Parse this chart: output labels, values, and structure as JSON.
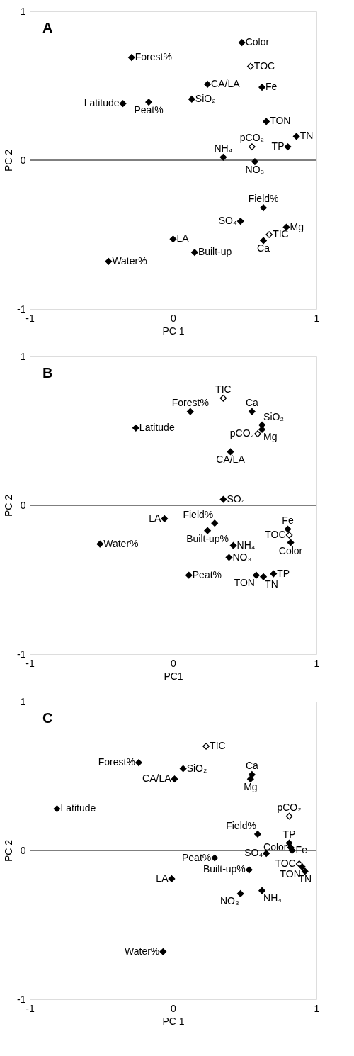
{
  "chart_data": [
    {
      "type": "scatter",
      "title": "A",
      "xlabel": "PC 1",
      "ylabel": "PC 2",
      "xlim": [
        -1,
        1
      ],
      "ylim": [
        -1,
        1
      ],
      "xticks": [
        -1,
        0,
        1
      ],
      "yticks": [
        -1,
        0,
        1
      ],
      "marker": "diamond",
      "ref_lines": [
        {
          "axis": "x",
          "value": 0,
          "color": "#000000"
        },
        {
          "axis": "y",
          "value": 0,
          "color": "#000000"
        }
      ],
      "series": [
        {
          "type": "scatter",
          "color": "#000000",
          "x": [
            -0.29,
            -0.35,
            -0.17,
            0.24,
            0.13,
            0.48,
            0.62,
            0.65,
            0.86,
            0.8,
            0.35,
            0.57,
            0.63,
            0.47,
            0.79,
            0.63,
            0.0,
            0.15,
            -0.45
          ],
          "values": [
            0.69,
            0.38,
            0.39,
            0.51,
            0.41,
            0.79,
            0.49,
            0.26,
            0.16,
            0.09,
            0.02,
            -0.01,
            -0.32,
            -0.41,
            -0.45,
            -0.54,
            -0.53,
            -0.62,
            -0.68
          ]
        },
        {
          "type": "scatter",
          "color": "#ffffff",
          "x": [
            0.54,
            0.55,
            0.67
          ],
          "values": [
            0.63,
            0.09,
            -0.5
          ]
        }
      ],
      "annotations": [
        {
          "text": "Forest%",
          "x": -0.29,
          "y": 0.69
        },
        {
          "text": "Latitude",
          "x": -0.35,
          "y": 0.38
        },
        {
          "text": "Peat%",
          "x": -0.17,
          "y": 0.39
        },
        {
          "text": "CA/LA",
          "x": 0.24,
          "y": 0.51
        },
        {
          "text": "SiO₂",
          "x": 0.13,
          "y": 0.41
        },
        {
          "text": "Color",
          "x": 0.48,
          "y": 0.79
        },
        {
          "text": "Fe",
          "x": 0.62,
          "y": 0.49
        },
        {
          "text": "TON",
          "x": 0.65,
          "y": 0.26
        },
        {
          "text": "TN",
          "x": 0.86,
          "y": 0.16
        },
        {
          "text": "TP",
          "x": 0.8,
          "y": 0.09
        },
        {
          "text": "NH₄",
          "x": 0.35,
          "y": 0.02
        },
        {
          "text": "NO₃",
          "x": 0.57,
          "y": -0.01
        },
        {
          "text": "Field%",
          "x": 0.63,
          "y": -0.32
        },
        {
          "text": "SO₄",
          "x": 0.47,
          "y": -0.41
        },
        {
          "text": "Mg",
          "x": 0.79,
          "y": -0.45
        },
        {
          "text": "Ca",
          "x": 0.63,
          "y": -0.54
        },
        {
          "text": "LA",
          "x": 0.0,
          "y": -0.53
        },
        {
          "text": "Built-up",
          "x": 0.15,
          "y": -0.62
        },
        {
          "text": "Water%",
          "x": -0.45,
          "y": -0.68
        },
        {
          "text": "TOC",
          "x": 0.54,
          "y": 0.63
        },
        {
          "text": "pCO₂",
          "x": 0.55,
          "y": 0.09
        },
        {
          "text": "TIC",
          "x": 0.67,
          "y": -0.5
        }
      ]
    },
    {
      "type": "scatter",
      "title": "B",
      "xlabel": "PC1",
      "ylabel": "PC 2",
      "xlim": [
        -1,
        1
      ],
      "ylim": [
        -1,
        1
      ],
      "xticks": [
        -1,
        0,
        1
      ],
      "yticks": [
        -1,
        0,
        1
      ],
      "marker": "diamond",
      "ref_lines": [
        {
          "axis": "x",
          "value": 0,
          "color": "#000000"
        },
        {
          "axis": "y",
          "value": 0,
          "color": "#000000"
        }
      ],
      "series": [
        {
          "type": "scatter",
          "color": "#000000",
          "x": [
            0.12,
            0.55,
            -0.26,
            0.62,
            0.62,
            0.4,
            0.35,
            -0.06,
            0.29,
            0.24,
            -0.51,
            0.42,
            0.39,
            0.11,
            0.58,
            0.63,
            0.7,
            0.8,
            0.82
          ],
          "values": [
            0.63,
            0.63,
            0.52,
            0.54,
            0.51,
            0.36,
            0.04,
            -0.09,
            -0.12,
            -0.17,
            -0.26,
            -0.27,
            -0.35,
            -0.47,
            -0.47,
            -0.48,
            -0.46,
            -0.16,
            -0.25
          ]
        },
        {
          "type": "scatter",
          "color": "#ffffff",
          "x": [
            0.35,
            0.59,
            0.81
          ],
          "values": [
            0.72,
            0.48,
            -0.2
          ]
        }
      ],
      "annotations": [
        {
          "text": "Forest%",
          "x": 0.12,
          "y": 0.63
        },
        {
          "text": "Ca",
          "x": 0.55,
          "y": 0.63
        },
        {
          "text": "Latitude",
          "x": -0.26,
          "y": 0.52
        },
        {
          "text": "SiO₂",
          "x": 0.62,
          "y": 0.54
        },
        {
          "text": "Mg",
          "x": 0.62,
          "y": 0.51
        },
        {
          "text": "CA/LA",
          "x": 0.4,
          "y": 0.36
        },
        {
          "text": "SO₄",
          "x": 0.35,
          "y": 0.04
        },
        {
          "text": "LA",
          "x": -0.06,
          "y": -0.09
        },
        {
          "text": "Field%",
          "x": 0.29,
          "y": -0.12
        },
        {
          "text": "Built-up%",
          "x": 0.24,
          "y": -0.17
        },
        {
          "text": "Water%",
          "x": -0.51,
          "y": -0.26
        },
        {
          "text": "NH₄",
          "x": 0.42,
          "y": -0.27
        },
        {
          "text": "NO₃",
          "x": 0.39,
          "y": -0.35
        },
        {
          "text": "Peat%",
          "x": 0.11,
          "y": -0.47
        },
        {
          "text": "TON",
          "x": 0.58,
          "y": -0.47
        },
        {
          "text": "TN",
          "x": 0.63,
          "y": -0.48
        },
        {
          "text": "TP",
          "x": 0.7,
          "y": -0.46
        },
        {
          "text": "Fe",
          "x": 0.8,
          "y": -0.16
        },
        {
          "text": "Color",
          "x": 0.82,
          "y": -0.25
        },
        {
          "text": "TIC",
          "x": 0.35,
          "y": 0.72
        },
        {
          "text": "pCO₂",
          "x": 0.59,
          "y": 0.48
        },
        {
          "text": "TOC",
          "x": 0.81,
          "y": -0.2
        }
      ]
    },
    {
      "type": "scatter",
      "title": "C",
      "xlabel": "PC 1",
      "ylabel": "PC 2",
      "xlim": [
        -1,
        1
      ],
      "ylim": [
        -1,
        1
      ],
      "xticks": [
        -1,
        0,
        1
      ],
      "yticks": [
        -1,
        0,
        1
      ],
      "marker": "diamond",
      "ref_lines": [
        {
          "axis": "x",
          "value": 0,
          "color": "#808080"
        },
        {
          "axis": "y",
          "value": 0,
          "color": "#000000"
        }
      ],
      "series": [
        {
          "type": "scatter",
          "color": "#000000",
          "x": [
            -0.24,
            0.07,
            0.01,
            0.55,
            0.54,
            -0.81,
            0.59,
            0.81,
            0.82,
            0.83,
            0.65,
            0.29,
            0.9,
            0.92,
            0.53,
            -0.01,
            0.62,
            0.47,
            -0.07
          ],
          "values": [
            0.59,
            0.55,
            0.48,
            0.51,
            0.48,
            0.28,
            0.11,
            0.05,
            0.02,
            0.0,
            -0.02,
            -0.05,
            -0.11,
            -0.14,
            -0.13,
            -0.19,
            -0.27,
            -0.29,
            -0.68
          ]
        },
        {
          "type": "scatter",
          "color": "#ffffff",
          "x": [
            0.23,
            0.81,
            0.88
          ],
          "values": [
            0.7,
            0.23,
            -0.09
          ]
        }
      ],
      "annotations": [
        {
          "text": "Forest%",
          "x": -0.24,
          "y": 0.59
        },
        {
          "text": "SiO₂",
          "x": 0.07,
          "y": 0.55
        },
        {
          "text": "CA/LA",
          "x": 0.01,
          "y": 0.48
        },
        {
          "text": "Ca",
          "x": 0.55,
          "y": 0.51
        },
        {
          "text": "Mg",
          "x": 0.54,
          "y": 0.48
        },
        {
          "text": "Latitude",
          "x": -0.81,
          "y": 0.28
        },
        {
          "text": "Field%",
          "x": 0.59,
          "y": 0.11
        },
        {
          "text": "TP",
          "x": 0.81,
          "y": 0.05
        },
        {
          "text": "Color",
          "x": 0.82,
          "y": 0.02
        },
        {
          "text": "Fe",
          "x": 0.83,
          "y": 0.0
        },
        {
          "text": "SO₄",
          "x": 0.65,
          "y": -0.02
        },
        {
          "text": "Peat%",
          "x": 0.29,
          "y": -0.05
        },
        {
          "text": "TON",
          "x": 0.9,
          "y": -0.11
        },
        {
          "text": "TN",
          "x": 0.92,
          "y": -0.14
        },
        {
          "text": "Built-up%",
          "x": 0.53,
          "y": -0.13
        },
        {
          "text": "LA",
          "x": -0.01,
          "y": -0.19
        },
        {
          "text": "NH₄",
          "x": 0.62,
          "y": -0.27
        },
        {
          "text": "NO₃",
          "x": 0.47,
          "y": -0.29
        },
        {
          "text": "Water%",
          "x": -0.07,
          "y": -0.68
        },
        {
          "text": "TIC",
          "x": 0.23,
          "y": 0.7
        },
        {
          "text": "pCO₂",
          "x": 0.81,
          "y": 0.23
        },
        {
          "text": "TOC",
          "x": 0.88,
          "y": -0.09
        }
      ]
    }
  ]
}
